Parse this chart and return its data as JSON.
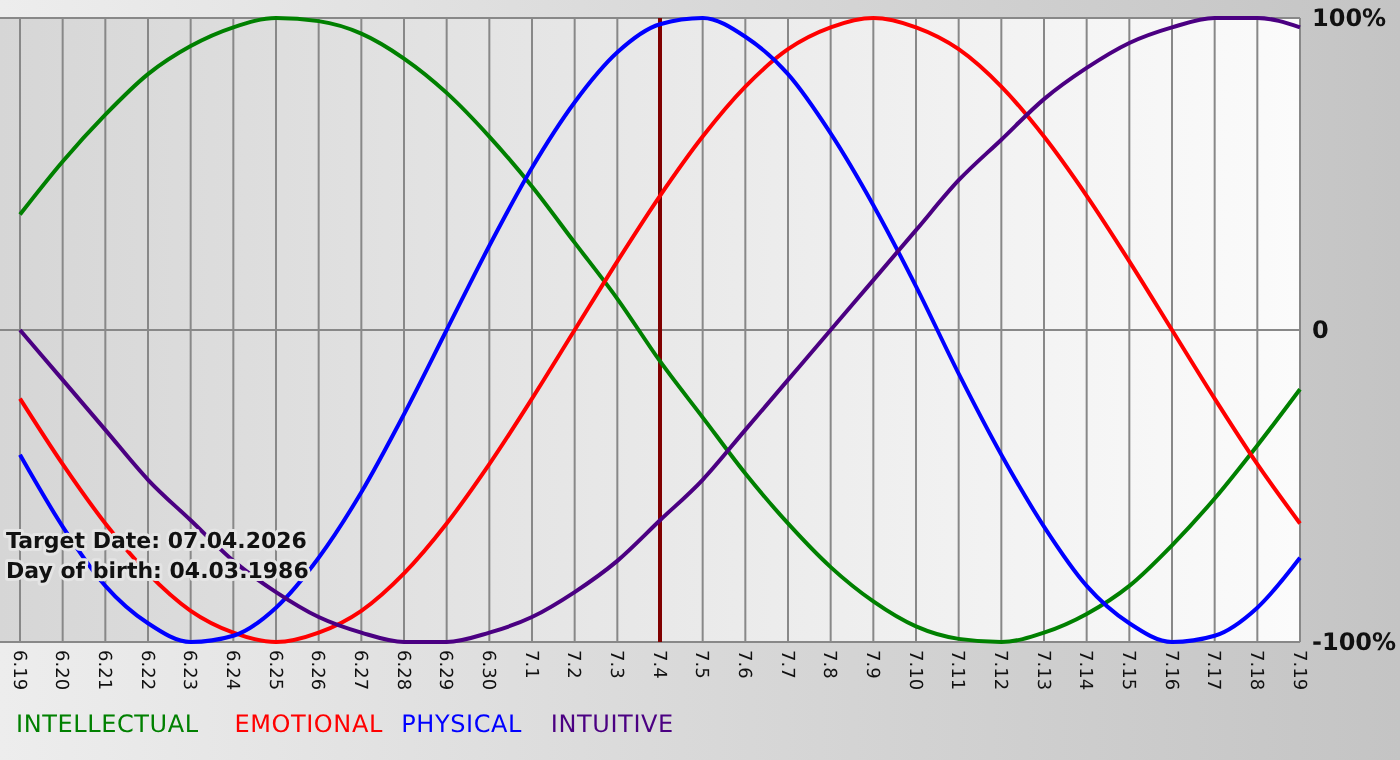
{
  "chart_data": {
    "type": "line",
    "categories": [
      "6.19",
      "6.20",
      "6.21",
      "6.22",
      "6.23",
      "6.24",
      "6.25",
      "6.26",
      "6.27",
      "6.28",
      "6.29",
      "6.30",
      "7.1",
      "7.2",
      "7.3",
      "7.4",
      "7.5",
      "7.6",
      "7.7",
      "7.8",
      "7.9",
      "7.10",
      "7.11",
      "7.12",
      "7.13",
      "7.14",
      "7.15",
      "7.16",
      "7.17",
      "7.18",
      "7.19"
    ],
    "series": [
      {
        "name": "INTELLECTUAL",
        "color": "#008000",
        "values": [
          37,
          54,
          69,
          82,
          91,
          97,
          100,
          99,
          95,
          87,
          76,
          62,
          46,
          28,
          10,
          -10,
          -28,
          -46,
          -62,
          -76,
          -87,
          -95,
          -99,
          -100,
          -97,
          -91,
          -82,
          -69,
          -54,
          -37,
          -19
        ]
      },
      {
        "name": "EMOTIONAL",
        "color": "#ff0000",
        "values": [
          -22,
          -43,
          -62,
          -78,
          -90,
          -97,
          -100,
          -97,
          -90,
          -78,
          -62,
          -43,
          -22,
          0,
          22,
          43,
          62,
          78,
          90,
          97,
          100,
          97,
          90,
          78,
          62,
          43,
          22,
          0,
          -22,
          -43,
          -62
        ]
      },
      {
        "name": "PHYSICAL",
        "color": "#0000ff",
        "values": [
          -40,
          -63,
          -82,
          -94,
          -100,
          -98,
          -89,
          -73,
          -52,
          -27,
          0,
          27,
          52,
          73,
          89,
          98,
          100,
          94,
          82,
          63,
          40,
          14,
          -14,
          -40,
          -63,
          -82,
          -94,
          -100,
          -98,
          -89,
          -73
        ]
      },
      {
        "name": "INTUITIVE",
        "color": "#4b0082",
        "values": [
          0,
          -16,
          -32,
          -48,
          -61,
          -74,
          -84,
          -92,
          -97,
          -100,
          -100,
          -97,
          -92,
          -84,
          -74,
          -61,
          -48,
          -32,
          -16,
          0,
          16,
          32,
          48,
          61,
          74,
          84,
          92,
          97,
          100,
          100,
          97
        ]
      }
    ],
    "ylim": [
      -100,
      100
    ],
    "yticks": [
      {
        "value": 100,
        "label": "100%"
      },
      0,
      {
        "value": -100,
        "label": "-100%"
      }
    ],
    "ref_lines": [
      {
        "axis": "x",
        "value": "7.4",
        "color": "#800000"
      }
    ],
    "annotations": [
      "Target Date: 07.04.2026",
      "Day of birth: 04.03.1986"
    ],
    "grid": true,
    "legend": "bottom",
    "marker": "none",
    "line_style": "solid"
  }
}
